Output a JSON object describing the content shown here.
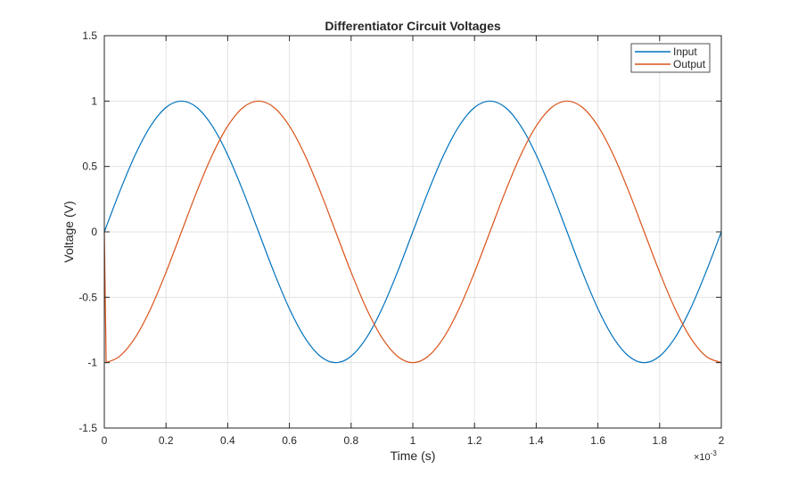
{
  "chart_data": {
    "type": "line",
    "title": "Differentiator Circuit Voltages",
    "xlabel": "Time (s)",
    "ylabel": "Voltage (V)",
    "x_multiplier_label": "×10",
    "x_multiplier_exp": "-3",
    "xlim": [
      0,
      2
    ],
    "ylim": [
      -1.5,
      1.5
    ],
    "xticks": [
      0,
      0.2,
      0.4,
      0.6,
      0.8,
      1,
      1.2,
      1.4,
      1.6,
      1.8,
      2
    ],
    "xtick_labels": [
      "0",
      "0.2",
      "0.4",
      "0.6",
      "0.8",
      "1",
      "1.2",
      "1.4",
      "1.6",
      "1.8",
      "2"
    ],
    "yticks": [
      -1.5,
      -1,
      -0.5,
      0,
      0.5,
      1,
      1.5
    ],
    "ytick_labels": [
      "-1.5",
      "-1",
      "-0.5",
      "0",
      "0.5",
      "1",
      "1.5"
    ],
    "grid": true,
    "legend_position": "top-right",
    "series": [
      {
        "name": "Input",
        "color": "#0072BD",
        "x": [
          0,
          0.05,
          0.1,
          0.15,
          0.2,
          0.25,
          0.3,
          0.35,
          0.4,
          0.45,
          0.5,
          0.55,
          0.6,
          0.65,
          0.7,
          0.75,
          0.8,
          0.85,
          0.9,
          0.95,
          1,
          1.05,
          1.1,
          1.15,
          1.2,
          1.25,
          1.3,
          1.35,
          1.4,
          1.45,
          1.5,
          1.55,
          1.6,
          1.65,
          1.7,
          1.75,
          1.8,
          1.85,
          1.9,
          1.95,
          2
        ],
        "y": [
          0,
          0.309,
          0.588,
          0.809,
          0.951,
          1,
          0.951,
          0.809,
          0.588,
          0.309,
          0,
          -0.309,
          -0.588,
          -0.809,
          -0.951,
          -1,
          -0.951,
          -0.809,
          -0.588,
          -0.309,
          0,
          0.309,
          0.588,
          0.809,
          0.951,
          1,
          0.951,
          0.809,
          0.588,
          0.309,
          0,
          -0.309,
          -0.588,
          -0.809,
          -0.951,
          -1,
          -0.951,
          -0.809,
          -0.588,
          -0.309,
          0
        ]
      },
      {
        "name": "Output",
        "color": "#D95319",
        "x": [
          0,
          0.006,
          0.05,
          0.1,
          0.15,
          0.2,
          0.25,
          0.3,
          0.35,
          0.4,
          0.45,
          0.5,
          0.55,
          0.6,
          0.65,
          0.7,
          0.75,
          0.8,
          0.85,
          0.9,
          0.95,
          1,
          1.05,
          1.1,
          1.15,
          1.2,
          1.25,
          1.3,
          1.35,
          1.4,
          1.45,
          1.5,
          1.55,
          1.6,
          1.65,
          1.7,
          1.75,
          1.8,
          1.85,
          1.9,
          1.95,
          2
        ],
        "y": [
          0,
          -0.999,
          -0.951,
          -0.809,
          -0.588,
          -0.309,
          0,
          0.309,
          0.588,
          0.809,
          0.951,
          1,
          0.951,
          0.809,
          0.588,
          0.309,
          0,
          -0.309,
          -0.588,
          -0.809,
          -0.951,
          -1,
          -0.951,
          -0.809,
          -0.588,
          -0.309,
          0,
          0.309,
          0.588,
          0.809,
          0.951,
          1,
          0.951,
          0.809,
          0.588,
          0.309,
          0,
          -0.309,
          -0.588,
          -0.809,
          -0.951,
          -1
        ]
      }
    ]
  }
}
